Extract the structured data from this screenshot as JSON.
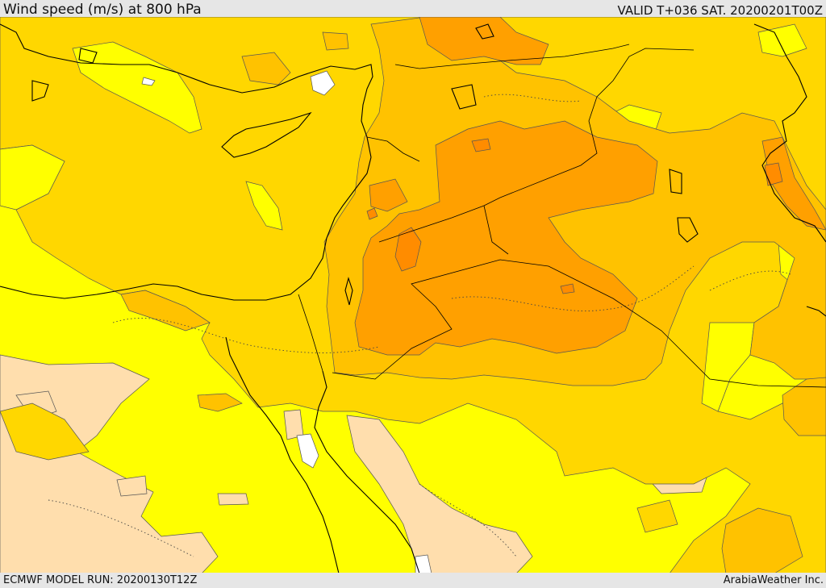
{
  "header": {
    "title": "Wind speed (m/s) at 800 hPa",
    "valid_time": "VALID T+036 SAT. 20200201T00Z"
  },
  "footer": {
    "model_run": "ECMWF MODEL RUN: 20200130T12Z",
    "credit": "ArabiaWeather Inc."
  },
  "map": {
    "field": "wind-speed",
    "pressure_level_hpa": 800,
    "palette": {
      "calm": "#ffffff",
      "very_light": "#ffdead",
      "light": "#ffff00",
      "moderate": "#ffd700",
      "fresh": "#ffc200",
      "strong": "#ffa000",
      "very_strong": "#ff8c00",
      "max": "#ff6a1a"
    },
    "coastline_color": "#000000",
    "contour_color": "#333333"
  }
}
